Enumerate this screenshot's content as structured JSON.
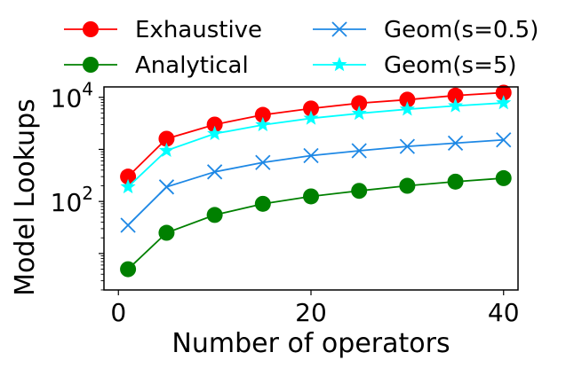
{
  "chart_data": {
    "type": "line",
    "xlabel": "Number of operators",
    "ylabel": "Model Lookups",
    "yscale": "log",
    "xlim": [
      -1.5,
      41.5
    ],
    "ylim_log10": [
      0.3,
      4.2
    ],
    "xticks": [
      0,
      20,
      40
    ],
    "yticks": [
      {
        "base": "10",
        "exp": "2",
        "value": 100
      },
      {
        "base": "10",
        "exp": "4",
        "value": 10000
      }
    ],
    "legend_position": "top",
    "series": [
      {
        "name": "Exhaustive",
        "color": "#ff0000",
        "marker": "circle",
        "x": [
          1,
          5,
          10,
          15,
          20,
          25,
          30,
          35,
          40
        ],
        "y": [
          300,
          1600,
          3000,
          4600,
          6100,
          7700,
          9000,
          10800,
          12300
        ]
      },
      {
        "name": "Analytical",
        "color": "#008000",
        "marker": "circle",
        "x": [
          1,
          5,
          10,
          15,
          20,
          25,
          30,
          35,
          40
        ],
        "y": [
          5,
          25,
          55,
          90,
          125,
          160,
          200,
          240,
          280
        ]
      },
      {
        "name": "Geom(s=0.5)",
        "color": "#1e88e5",
        "marker": "x",
        "x": [
          1,
          5,
          10,
          15,
          20,
          25,
          30,
          35,
          40
        ],
        "y": [
          35,
          190,
          370,
          560,
          760,
          940,
          1140,
          1320,
          1520
        ]
      },
      {
        "name": "Geom(s=5)",
        "color": "#00ffff",
        "marker": "star",
        "x": [
          1,
          5,
          10,
          15,
          20,
          25,
          30,
          35,
          40
        ],
        "y": [
          190,
          950,
          2000,
          2950,
          3950,
          4900,
          5900,
          6850,
          7800
        ]
      }
    ]
  }
}
